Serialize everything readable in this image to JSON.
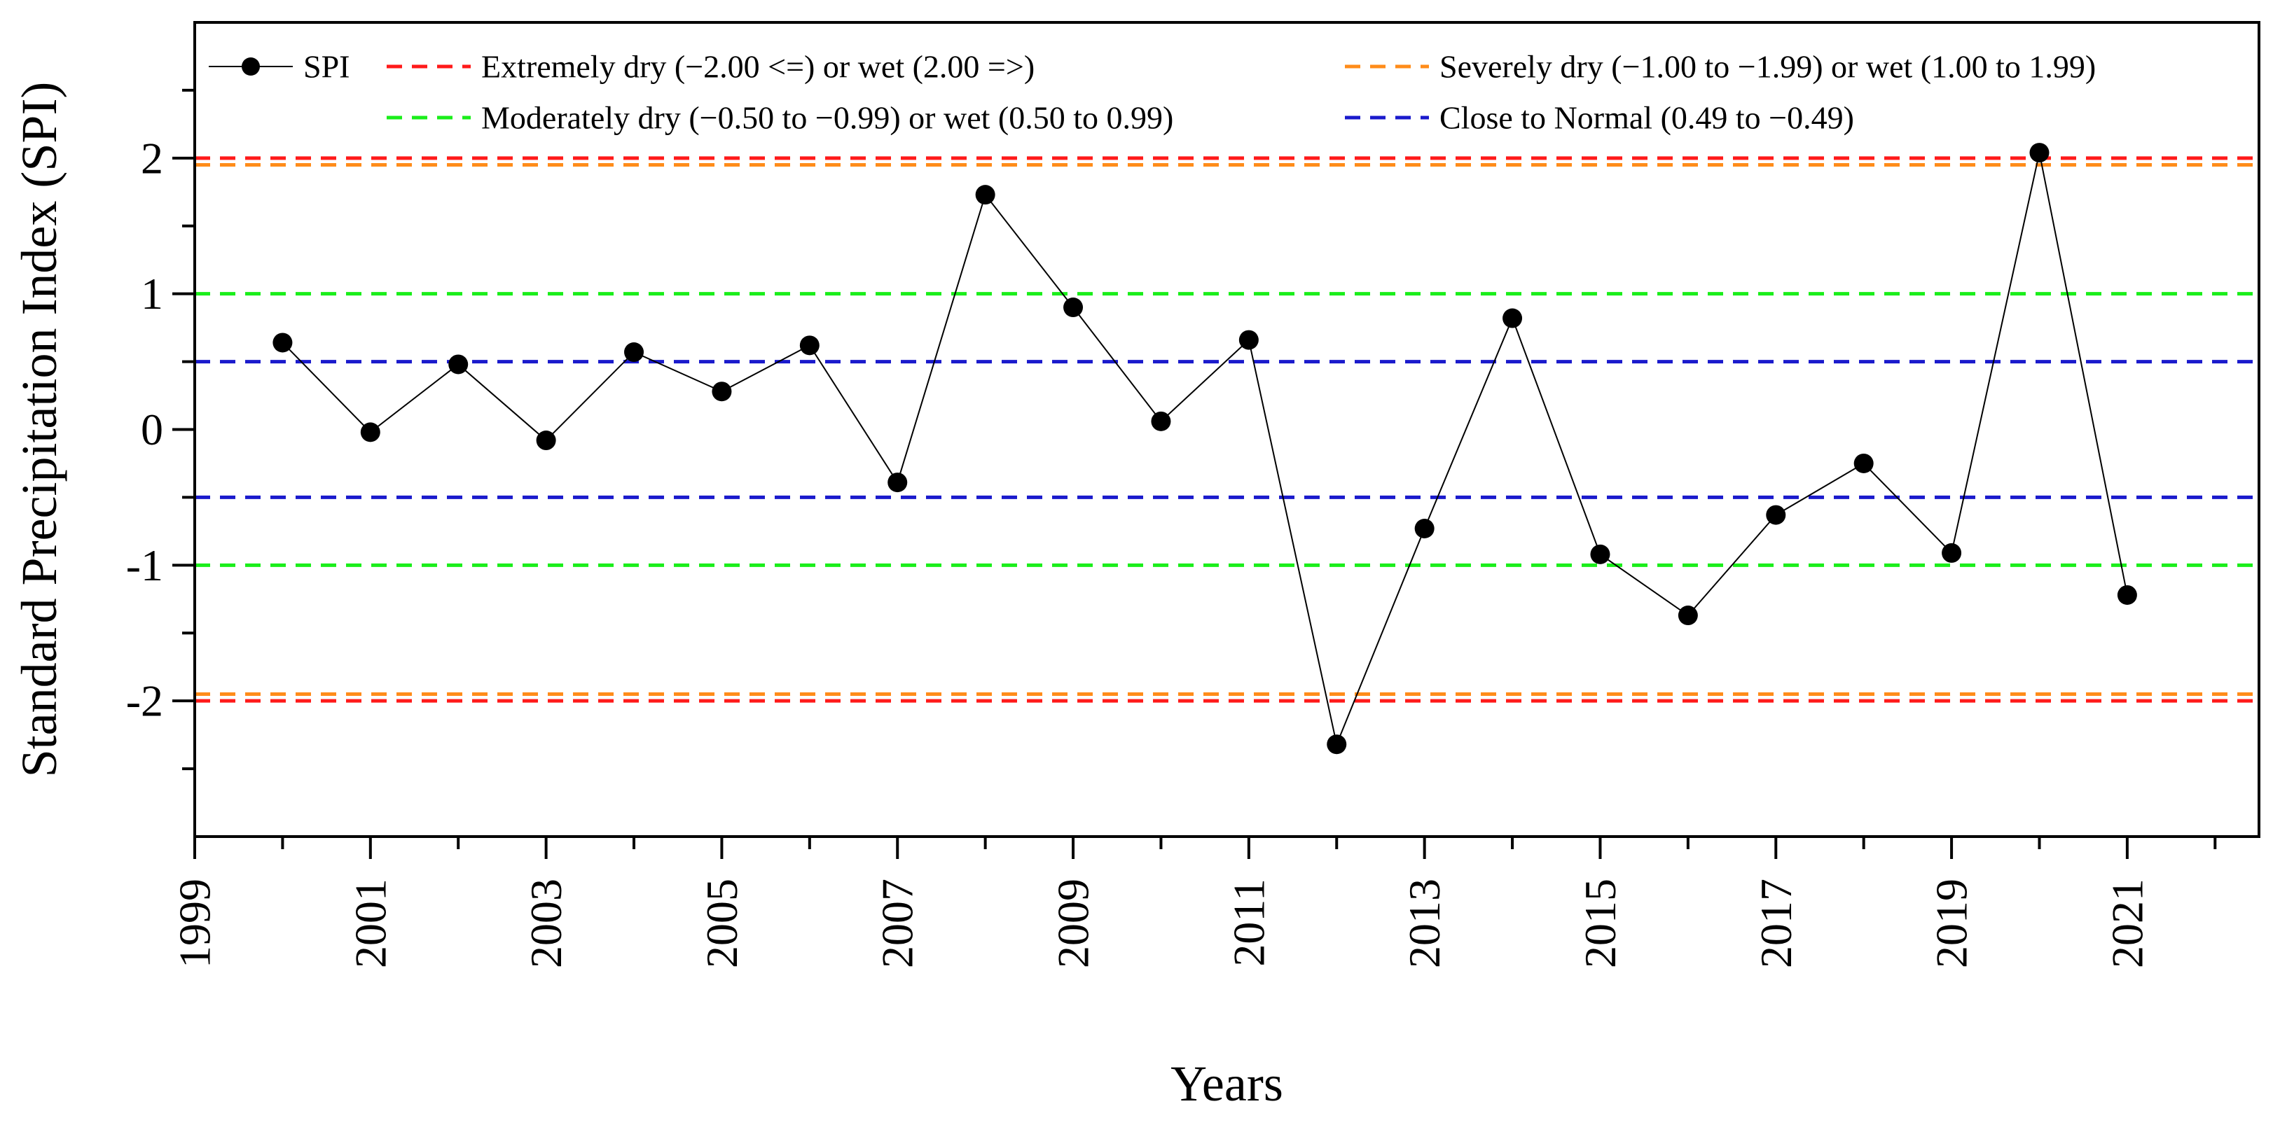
{
  "chart_data": {
    "type": "line",
    "title": "",
    "xlabel": "Years",
    "ylabel": "Standard Precipitation Index (SPI)",
    "xlim": [
      1999,
      2022.5
    ],
    "ylim": [
      -3,
      3
    ],
    "x_tick_labels": [
      "1999",
      "2001",
      "2003",
      "2005",
      "2007",
      "2009",
      "2011",
      "2013",
      "2015",
      "2017",
      "2019",
      "2021"
    ],
    "y_tick_labels": [
      "2",
      "1",
      "0",
      "-1",
      "-2"
    ],
    "grid": false,
    "legend_placement": "top",
    "series": [
      {
        "name": "SPI",
        "color": "#000000",
        "x": [
          2000,
          2001,
          2002,
          2003,
          2004,
          2005,
          2006,
          2007,
          2008,
          2009,
          2010,
          2011,
          2012,
          2013,
          2014,
          2015,
          2016,
          2017,
          2018,
          2019,
          2020,
          2021
        ],
        "values": [
          0.64,
          -0.02,
          0.48,
          -0.08,
          0.57,
          0.28,
          0.62,
          -0.39,
          1.73,
          0.9,
          0.06,
          0.66,
          -2.32,
          -0.73,
          0.82,
          -0.92,
          -1.37,
          -0.63,
          -0.25,
          -0.91,
          2.04,
          -1.22
        ]
      }
    ],
    "reference_lines": [
      {
        "name": "Extremely dry (−2.00 <=) or wet (2.00 =>)",
        "color": "#ff1a1a",
        "values": [
          2.0,
          -2.0
        ]
      },
      {
        "name": "Severely dry (−1.00 to −1.99) or wet (1.00 to 1.99)",
        "color": "#ff8c1a",
        "values": [
          1.95,
          -1.95
        ]
      },
      {
        "name": "Moderately dry (−0.50 to −0.99) or wet (0.50 to 0.99)",
        "color": "#1aee1a",
        "values": [
          1.0,
          -1.0
        ]
      },
      {
        "name": "Close to Normal (0.49 to −0.49)",
        "color": "#1a1acc",
        "values": [
          0.5,
          -0.5
        ]
      }
    ]
  }
}
